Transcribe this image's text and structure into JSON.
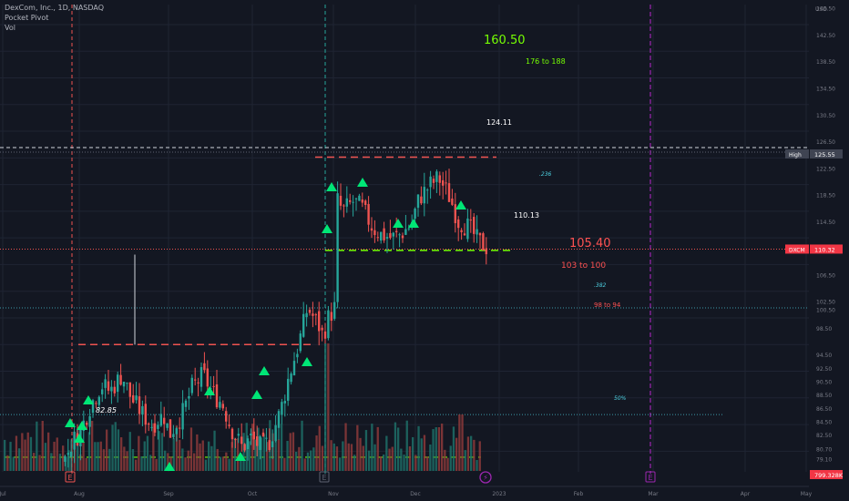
{
  "legend": {
    "symbol": "DexCom, Inc., 1D, NASDAQ",
    "indicators": [
      "Pocket Pivot",
      "Vol"
    ]
  },
  "colors": {
    "background": "#131722",
    "up": "#26a69a",
    "down": "#ef5350",
    "grid": "#1f2433",
    "pivot_marker": "#00e676",
    "target_green": "#76ff03",
    "target_red": "#ff5252",
    "fib_blue": "#4dd0e1",
    "event_purple": "#9c27b0"
  },
  "chart_data": {
    "type": "candlestick",
    "currency": "USD",
    "y_axis": {
      "label": "USD",
      "min": 78.0,
      "max": 147.0,
      "ticks": [
        "146.50",
        "142.50",
        "138.50",
        "134.50",
        "130.50",
        "126.50",
        "122.50",
        "118.50",
        "114.50",
        "110.50",
        "106.50",
        "102.50",
        "100.50",
        "98.50",
        "94.50",
        "92.50",
        "90.50",
        "88.50",
        "86.50",
        "84.50",
        "82.50",
        "80.70",
        "79.10"
      ]
    },
    "x_axis": {
      "labels": [
        "Jul",
        "Aug",
        "Sep",
        "Oct",
        "Nov",
        "Dec",
        "2023",
        "Feb",
        "Mar",
        "Apr",
        "May"
      ]
    },
    "price_path": [
      [
        "Jul 25",
        78.9
      ],
      [
        "Jul 28",
        81.5
      ],
      [
        "Aug 1",
        83.0
      ],
      [
        "Aug 4",
        86.5
      ],
      [
        "Aug 8",
        90.0
      ],
      [
        "Aug 11",
        89.0
      ],
      [
        "Aug 15",
        91.5
      ],
      [
        "Aug 18",
        88.0
      ],
      [
        "Aug 22",
        85.5
      ],
      [
        "Aug 25",
        84.0
      ],
      [
        "Aug 29",
        85.5
      ],
      [
        "Sep 1",
        82.5
      ],
      [
        "Sep 6",
        86.0
      ],
      [
        "Sep 9",
        89.5
      ],
      [
        "Sep 13",
        91.5
      ],
      [
        "Sep 16",
        89.0
      ],
      [
        "Sep 20",
        87.0
      ],
      [
        "Sep 23",
        83.5
      ],
      [
        "Sep 27",
        80.5
      ],
      [
        "Sep 30",
        82.0
      ],
      [
        "Oct 4",
        80.5
      ],
      [
        "Oct 7",
        81.5
      ],
      [
        "Oct 11",
        86.0
      ],
      [
        "Oct 14",
        91.0
      ],
      [
        "Oct 18",
        96.5
      ],
      [
        "Oct 21",
        101.5
      ],
      [
        "Oct 25",
        99.0
      ],
      [
        "Oct 27",
        97.0
      ],
      [
        "Oct 28",
        99.5
      ],
      [
        "Oct 31",
        101.5
      ],
      [
        "Nov 1",
        118.5
      ],
      [
        "Nov 4",
        116.0
      ],
      [
        "Nov 8",
        117.5
      ],
      [
        "Nov 11",
        116.5
      ],
      [
        "Nov 15",
        113.5
      ],
      [
        "Nov 18",
        112.5
      ],
      [
        "Nov 22",
        112.0
      ],
      [
        "Nov 25",
        112.5
      ],
      [
        "Nov 29",
        114.0
      ],
      [
        "Dec 2",
        118.0
      ],
      [
        "Dec 6",
        120.0
      ],
      [
        "Dec 9",
        121.0
      ],
      [
        "Dec 13",
        118.0
      ],
      [
        "Dec 16",
        114.5
      ],
      [
        "Dec 20",
        113.5
      ],
      [
        "Dec 23",
        111.5
      ],
      [
        "Dec 27",
        110.3
      ]
    ],
    "volume_last": "799.328K",
    "price_labels": [
      {
        "id": "high",
        "tag": "High",
        "value": "125.55"
      },
      {
        "id": "last",
        "tag": "DXCM",
        "value": "110.32"
      },
      {
        "id": "vol",
        "tag": "",
        "value": "799.328K"
      }
    ],
    "annotations": {
      "target_main_green": "160.50",
      "target_range_green": "176 to 188",
      "resistance_label": "124.11",
      "support_label": "110.13",
      "target_main_red": "105.40",
      "target_range_red_1": "103 to 100",
      "target_range_red_2": "98 to 94",
      "fib_236": ".236",
      "fib_382": ".382",
      "fib_50": "50%",
      "low_label": "82.85"
    },
    "levels": {
      "high_dashed": 125.55,
      "resistance": 124.11,
      "support": 110.13,
      "last_price": 110.32,
      "breakout_top": 96.0,
      "fib_382_level": 101.5,
      "fib_50_level": 85.5,
      "pivot_band": 79.1
    },
    "event_markers": [
      "E",
      "E",
      "E"
    ]
  }
}
